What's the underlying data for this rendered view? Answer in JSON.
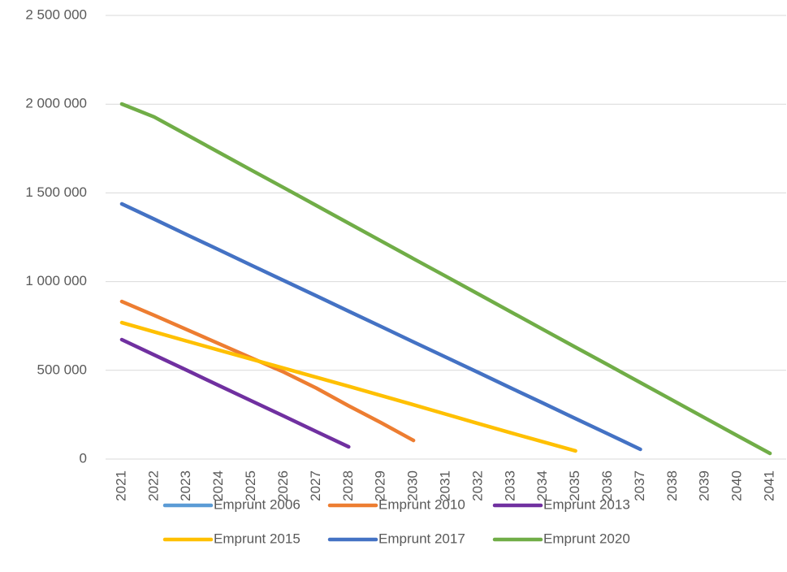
{
  "chart_data": {
    "type": "line",
    "categories": [
      "2021",
      "2022",
      "2023",
      "2024",
      "2025",
      "2026",
      "2027",
      "2028",
      "2029",
      "2030",
      "2031",
      "2032",
      "2033",
      "2034",
      "2035",
      "2036",
      "2037",
      "2038",
      "2039",
      "2040",
      "2041"
    ],
    "series": [
      {
        "name": "Emprunt 2006",
        "color": "#5b9bd5",
        "values": [
          null,
          null,
          null,
          null,
          null,
          null,
          null,
          null,
          null,
          null,
          null,
          null,
          null,
          null,
          null,
          null,
          null,
          null,
          null,
          null,
          null
        ]
      },
      {
        "name": "Emprunt 2010",
        "color": "#ed7d31",
        "values": [
          888000,
          810000,
          730000,
          650000,
          570000,
          490000,
          400000,
          300000,
          205000,
          105000,
          null,
          null,
          null,
          null,
          null,
          null,
          null,
          null,
          null,
          null,
          null
        ]
      },
      {
        "name": "Emprunt 2013",
        "color": "#7030a0",
        "values": [
          673000,
          587000,
          501000,
          414000,
          328000,
          242000,
          155000,
          69000,
          null,
          null,
          null,
          null,
          null,
          null,
          null,
          null,
          null,
          null,
          null,
          null,
          null
        ]
      },
      {
        "name": "Emprunt 2015",
        "color": "#ffc000",
        "values": [
          769000,
          717000,
          665000,
          614000,
          563000,
          512000,
          461000,
          410000,
          358000,
          306000,
          253000,
          200000,
          148000,
          97000,
          46000,
          null,
          null,
          null,
          null,
          null,
          null
        ]
      },
      {
        "name": "Emprunt 2017",
        "color": "#4472c4",
        "values": [
          1438000,
          1352000,
          1265000,
          1179000,
          1092000,
          1006000,
          920000,
          833000,
          747000,
          660000,
          574000,
          488000,
          401000,
          315000,
          228000,
          142000,
          55000,
          null,
          null,
          null,
          null
        ]
      },
      {
        "name": "Emprunt 2020",
        "color": "#70ad47",
        "values": [
          2001000,
          1928000,
          1828000,
          1728000,
          1628000,
          1529000,
          1429000,
          1329000,
          1229000,
          1129000,
          1030000,
          930000,
          830000,
          730000,
          630000,
          531000,
          431000,
          331000,
          231000,
          131000,
          32000
        ]
      }
    ],
    "ylim": [
      0,
      2500000
    ],
    "yticks": [
      0,
      {
        "value": 500000,
        "label": "500 000"
      },
      {
        "value": 1000000,
        "label": "1 000 000"
      },
      {
        "value": 1500000,
        "label": "1 500 000"
      },
      {
        "value": 2000000,
        "label": "2 000 000"
      },
      {
        "value": 2500000,
        "label": "2 500 000"
      }
    ],
    "grid": true,
    "legend_position": "bottom"
  }
}
